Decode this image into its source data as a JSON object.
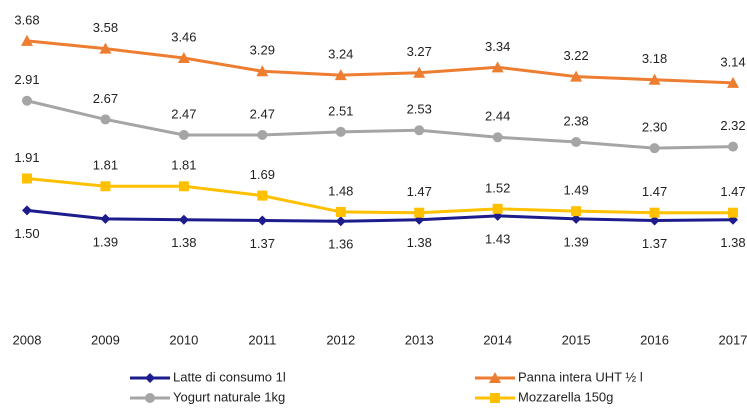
{
  "chart_data": {
    "type": "line",
    "categories": [
      "2008",
      "2009",
      "2010",
      "2011",
      "2012",
      "2013",
      "2014",
      "2015",
      "2016",
      "2017"
    ],
    "ylim": [
      0,
      4
    ],
    "series": [
      {
        "name": "Latte di consumo 1l",
        "color": "#1c1c8c",
        "marker": "diamond",
        "label_position": "below",
        "values": [
          1.5,
          1.39,
          1.38,
          1.37,
          1.36,
          1.38,
          1.43,
          1.39,
          1.37,
          1.38
        ],
        "value_labels": [
          "1.50",
          "1.39",
          "1.38",
          "1.37",
          "1.36",
          "1.38",
          "1.43",
          "1.39",
          "1.37",
          "1.38"
        ]
      },
      {
        "name": "Panna intera UHT ½ l",
        "color": "#ed7d31",
        "marker": "triangle",
        "label_position": "above",
        "values": [
          3.68,
          3.58,
          3.46,
          3.29,
          3.24,
          3.27,
          3.34,
          3.22,
          3.18,
          3.14
        ],
        "value_labels": [
          "3.68",
          "3.58",
          "3.46",
          "3.29",
          "3.24",
          "3.27",
          "3.34",
          "3.22",
          "3.18",
          "3.14"
        ]
      },
      {
        "name": "Yogurt naturale 1kg",
        "color": "#a5a5a5",
        "marker": "circle",
        "label_position": "above",
        "values": [
          2.91,
          2.67,
          2.47,
          2.47,
          2.51,
          2.53,
          2.44,
          2.38,
          2.3,
          2.32
        ],
        "value_labels": [
          "2.91",
          "2.67",
          "2.47",
          "2.47",
          "2.51",
          "2.53",
          "2.44",
          "2.38",
          "2.30",
          "2.32"
        ]
      },
      {
        "name": "Mozzarella 150g",
        "color": "#ffc000",
        "marker": "square",
        "label_position": "above",
        "values": [
          1.91,
          1.81,
          1.81,
          1.69,
          1.48,
          1.47,
          1.52,
          1.49,
          1.47,
          1.47
        ],
        "value_labels": [
          "1.91",
          "1.81",
          "1.81",
          "1.69",
          "1.48",
          "1.47",
          "1.52",
          "1.49",
          "1.47",
          "1.47"
        ]
      }
    ]
  }
}
